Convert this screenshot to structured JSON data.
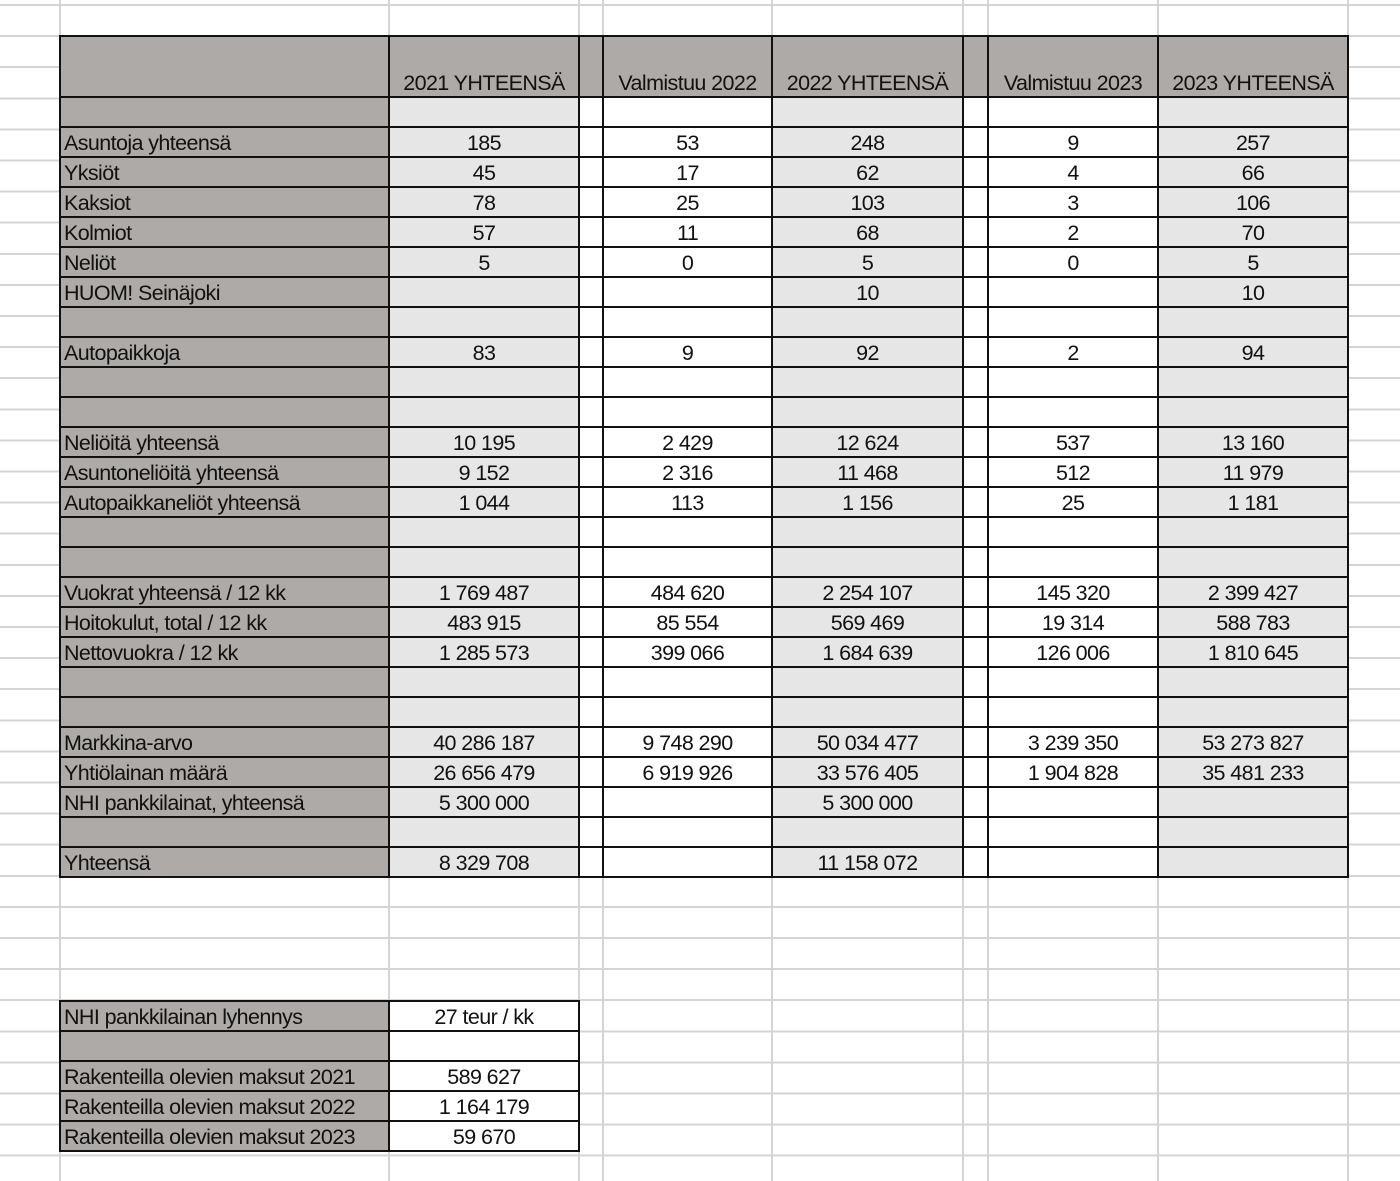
{
  "colors": {
    "label_bg": "#adaaa7",
    "total_bg": "#e6e6e6",
    "value_bg": "#ffffff",
    "border": "#111111"
  },
  "main": {
    "headers": [
      "",
      "2021 YHTEENSÄ",
      "",
      "Valmistuu 2022",
      "2022 YHTEENSÄ",
      "",
      "Valmistuu 2023",
      "2023 YHTEENSÄ"
    ],
    "rows": [
      {
        "label": "",
        "values": [
          "",
          "",
          "",
          "",
          ""
        ]
      },
      {
        "label": "Asuntoja yhteensä",
        "values": [
          "185",
          "53",
          "248",
          "9",
          "257"
        ]
      },
      {
        "label": "Yksiöt",
        "values": [
          "45",
          "17",
          "62",
          "4",
          "66"
        ]
      },
      {
        "label": "Kaksiot",
        "values": [
          "78",
          "25",
          "103",
          "3",
          "106"
        ]
      },
      {
        "label": "Kolmiot",
        "values": [
          "57",
          "11",
          "68",
          "2",
          "70"
        ]
      },
      {
        "label": "Neliöt",
        "values": [
          "5",
          "0",
          "5",
          "0",
          "5"
        ]
      },
      {
        "label": "HUOM! Seinäjoki",
        "values": [
          "",
          "",
          "10",
          "",
          "10"
        ]
      },
      {
        "label": "",
        "values": [
          "",
          "",
          "",
          "",
          ""
        ]
      },
      {
        "label": "Autopaikkoja",
        "values": [
          "83",
          "9",
          "92",
          "2",
          "94"
        ]
      },
      {
        "label": "",
        "values": [
          "",
          "",
          "",
          "",
          ""
        ]
      },
      {
        "label": "",
        "values": [
          "",
          "",
          "",
          "",
          ""
        ]
      },
      {
        "label": "Neliöitä yhteensä",
        "values": [
          "10 195",
          "2 429",
          "12 624",
          "537",
          "13 160"
        ]
      },
      {
        "label": "Asuntoneliöitä yhteensä",
        "values": [
          "9 152",
          "2 316",
          "11 468",
          "512",
          "11 979"
        ]
      },
      {
        "label": "Autopaikkaneliöt yhteensä",
        "values": [
          "1 044",
          "113",
          "1 156",
          "25",
          "1 181"
        ]
      },
      {
        "label": "",
        "values": [
          "",
          "",
          "",
          "",
          ""
        ]
      },
      {
        "label": "",
        "values": [
          "",
          "",
          "",
          "",
          ""
        ]
      },
      {
        "label": "Vuokrat yhteensä / 12 kk",
        "values": [
          "1 769 487",
          "484 620",
          "2 254 107",
          "145 320",
          "2 399 427"
        ]
      },
      {
        "label": "Hoitokulut, total / 12 kk",
        "values": [
          "483 915",
          "85 554",
          "569 469",
          "19 314",
          "588 783"
        ]
      },
      {
        "label": "Nettovuokra / 12 kk",
        "values": [
          "1 285 573",
          "399 066",
          "1 684 639",
          "126 006",
          "1 810 645"
        ]
      },
      {
        "label": "",
        "values": [
          "",
          "",
          "",
          "",
          ""
        ]
      },
      {
        "label": "",
        "values": [
          "",
          "",
          "",
          "",
          ""
        ]
      },
      {
        "label": "Markkina-arvo",
        "values": [
          "40 286 187",
          "9 748 290",
          "50 034 477",
          "3 239 350",
          "53 273 827"
        ]
      },
      {
        "label": "Yhtiölainan määrä",
        "values": [
          "26 656 479",
          "6 919 926",
          "33 576 405",
          "1 904 828",
          "35 481 233"
        ]
      },
      {
        "label": "NHI pankkilainat, yhteensä",
        "values": [
          "5 300 000",
          "",
          "5 300 000",
          "",
          ""
        ]
      },
      {
        "label": "",
        "values": [
          "",
          "",
          "",
          "",
          ""
        ]
      },
      {
        "label": "Yhteensä",
        "values": [
          "8 329 708",
          "",
          "11 158 072",
          "",
          ""
        ]
      }
    ]
  },
  "sub": {
    "rows": [
      {
        "label": "NHI pankkilainan lyhennys",
        "value": "27 teur / kk"
      },
      {
        "label": "",
        "value": ""
      },
      {
        "label": "Rakenteilla olevien maksut 2021",
        "value": "589 627"
      },
      {
        "label": "Rakenteilla olevien maksut 2022",
        "value": "1 164 179"
      },
      {
        "label": "Rakenteilla olevien maksut 2023",
        "value": "59 670"
      }
    ]
  }
}
